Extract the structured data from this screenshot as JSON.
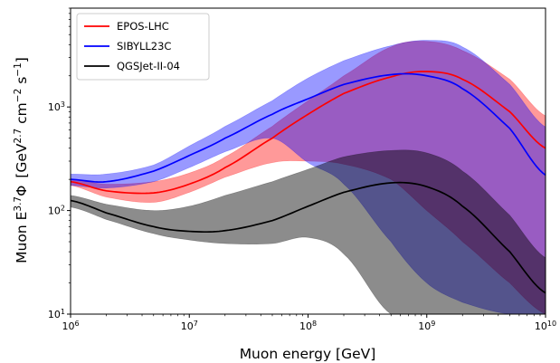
{
  "chart_data": {
    "type": "area",
    "title": "",
    "xlabel": "Muon energy [GeV]",
    "ylabel": {
      "prefix": "Muon E",
      "prefix_sup": "3.7",
      "symbol": "Φ",
      "unit_open": "[GeV",
      "unit_sup1": "2.7",
      "unit_mid": " cm",
      "unit_sup2": "−2",
      "unit_mid2": " s",
      "unit_sup3": "−1",
      "unit_close": "]"
    },
    "x_scale": "log",
    "y_scale": "log",
    "xlim": [
      1000000.0,
      10000000000.0
    ],
    "ylim": [
      10,
      9000
    ],
    "x_ticks": [
      {
        "value": 1000000.0,
        "base": "10",
        "exp": "6"
      },
      {
        "value": 10000000.0,
        "base": "10",
        "exp": "7"
      },
      {
        "value": 100000000.0,
        "base": "10",
        "exp": "8"
      },
      {
        "value": 1000000000.0,
        "base": "10",
        "exp": "9"
      },
      {
        "value": 10000000000.0,
        "base": "10",
        "exp": "10"
      }
    ],
    "y_ticks": [
      {
        "value": 10,
        "base": "10",
        "exp": "1"
      },
      {
        "value": 100,
        "base": "10",
        "exp": "2"
      },
      {
        "value": 1000,
        "base": "10",
        "exp": "3"
      }
    ],
    "grid": false,
    "legend_position": "top-left",
    "series": [
      {
        "name": "EPOS-LHC",
        "color": "#ff0000",
        "band_color": "#ff0000",
        "band_opacity": 0.4,
        "x": [
          1000000.0,
          2000000.0,
          5000000.0,
          10000000.0,
          20000000.0,
          50000000.0,
          100000000.0,
          200000000.0,
          500000000.0,
          1000000000.0,
          2000000000.0,
          5000000000.0,
          10000000000.0
        ],
        "y": [
          190,
          155,
          148,
          180,
          260,
          500,
          850,
          1350,
          1950,
          2200,
          1850,
          900,
          400
        ],
        "band_upper": [
          200,
          180,
          190,
          230,
          330,
          650,
          1150,
          2000,
          3800,
          4300,
          3500,
          1850,
          820
        ],
        "band_lower": [
          175,
          135,
          120,
          150,
          210,
          290,
          300,
          280,
          200,
          100,
          50,
          20,
          10
        ]
      },
      {
        "name": "SIBYLL23C",
        "color": "#0000ff",
        "band_color": "#0000ff",
        "band_opacity": 0.4,
        "x": [
          1000000.0,
          2000000.0,
          5000000.0,
          10000000.0,
          20000000.0,
          50000000.0,
          100000000.0,
          200000000.0,
          500000000.0,
          1000000000.0,
          2000000000.0,
          5000000000.0,
          10000000000.0
        ],
        "y": [
          200,
          190,
          240,
          340,
          500,
          850,
          1200,
          1650,
          2050,
          2000,
          1500,
          620,
          220
        ],
        "band_upper": [
          225,
          225,
          275,
          420,
          650,
          1150,
          1900,
          2800,
          3900,
          4400,
          3800,
          1650,
          640
        ],
        "band_lower": [
          175,
          165,
          190,
          260,
          370,
          500,
          290,
          180,
          50,
          20,
          13,
          10,
          10
        ]
      },
      {
        "name": "QGSJet-II-04",
        "color": "#000000",
        "band_color": "#000000",
        "band_opacity": 0.45,
        "x": [
          1000000.0,
          2000000.0,
          5000000.0,
          10000000.0,
          20000000.0,
          50000000.0,
          100000000.0,
          200000000.0,
          500000000.0,
          1000000000.0,
          2000000000.0,
          5000000000.0,
          10000000000.0
        ],
        "y": [
          125,
          95,
          70,
          63,
          64,
          80,
          110,
          150,
          185,
          170,
          110,
          40,
          16
        ],
        "band_upper": [
          140,
          115,
          100,
          110,
          140,
          190,
          250,
          330,
          380,
          360,
          240,
          90,
          35
        ],
        "band_lower": [
          108,
          82,
          60,
          52,
          48,
          48,
          55,
          38,
          10,
          10,
          10,
          10,
          10
        ]
      }
    ]
  }
}
